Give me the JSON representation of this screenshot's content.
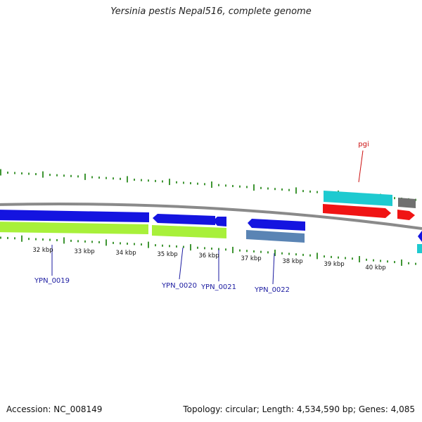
{
  "title": "Yersinia pestis Nepal516, complete genome",
  "footer": {
    "accession": "Accession: NC_008149",
    "summary": "Topology: circular; Length: 4,534,590 bp; Genes: 4,085"
  },
  "colors": {
    "backbone": "#8a8a8a",
    "ticks": "#2a8a1e",
    "gene_blue": "#1414e0",
    "gene_lime": "#a8f03a",
    "gene_steel": "#5a84b4",
    "gene_cyan": "#1ecad0",
    "gene_red": "#f01414",
    "gene_gray": "#707070",
    "label_blue": "#1a1aa0",
    "label_red": "#cc1111"
  },
  "ruler": {
    "labels": [
      "32 kbp",
      "33 kbp",
      "34 kbp",
      "35 kbp",
      "36 kbp",
      "37 kbp",
      "38 kbp",
      "39 kbp",
      "40 kbp"
    ]
  },
  "gene_labels": {
    "ypn_0019": "YPN_0019",
    "ypn_0020": "YPN_0020",
    "ypn_0021": "YPN_0021",
    "ypn_0022": "YPN_0022",
    "pgi": "pgi"
  }
}
